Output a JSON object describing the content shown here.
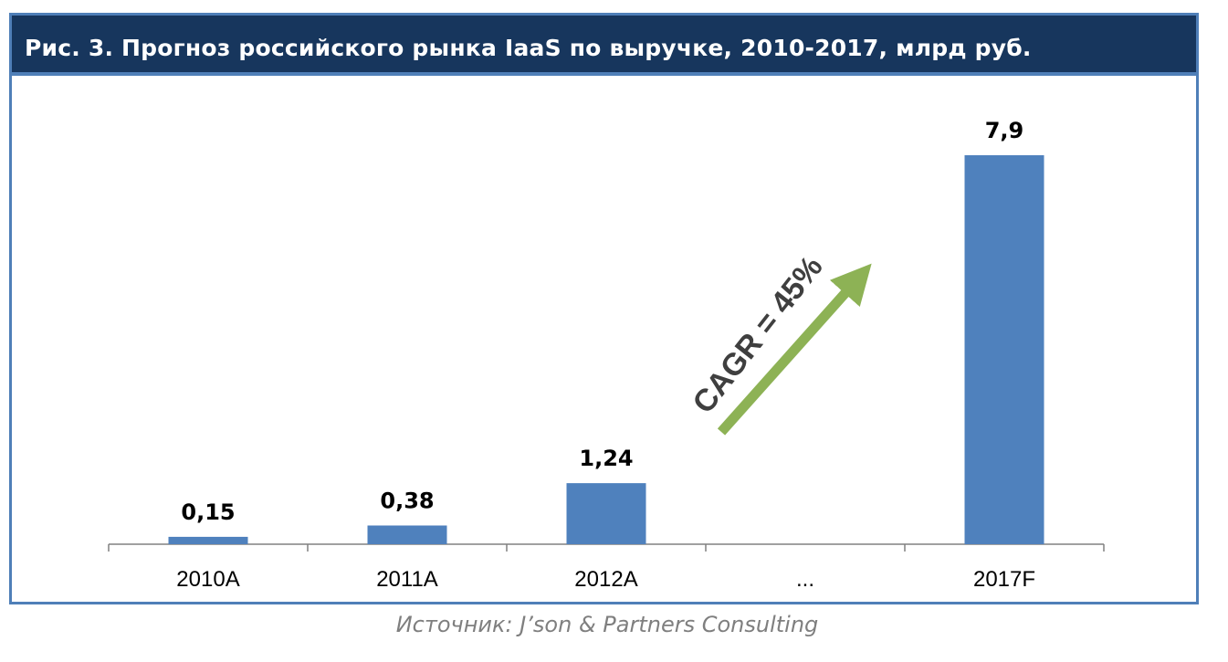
{
  "title": "Рис. 3. Прогноз российского рынка IaaS по выручке, 2010-2017, млрд руб.",
  "source": "Источник: J’son & Partners Consulting",
  "chart_data": {
    "type": "bar",
    "title": "Рис. 3. Прогноз российского рынка IaaS по выручке, 2010-2017, млрд руб.",
    "categories": [
      "2010A",
      "2011A",
      "2012A",
      "...",
      "2017F"
    ],
    "values": [
      0.15,
      0.38,
      1.24,
      null,
      7.9
    ],
    "value_labels": [
      "0,15",
      "0,38",
      "1,24",
      "",
      "7,9"
    ],
    "xlabel": "",
    "ylabel": "",
    "ylim": [
      0,
      8.5
    ],
    "grid": false,
    "legend": "none",
    "annotation": "CAGR = 45%",
    "colors": {
      "bar": "#4f81bd",
      "arrow": "#8db255",
      "title_bg": "#17365d",
      "frame": "#4f7fb8"
    }
  }
}
